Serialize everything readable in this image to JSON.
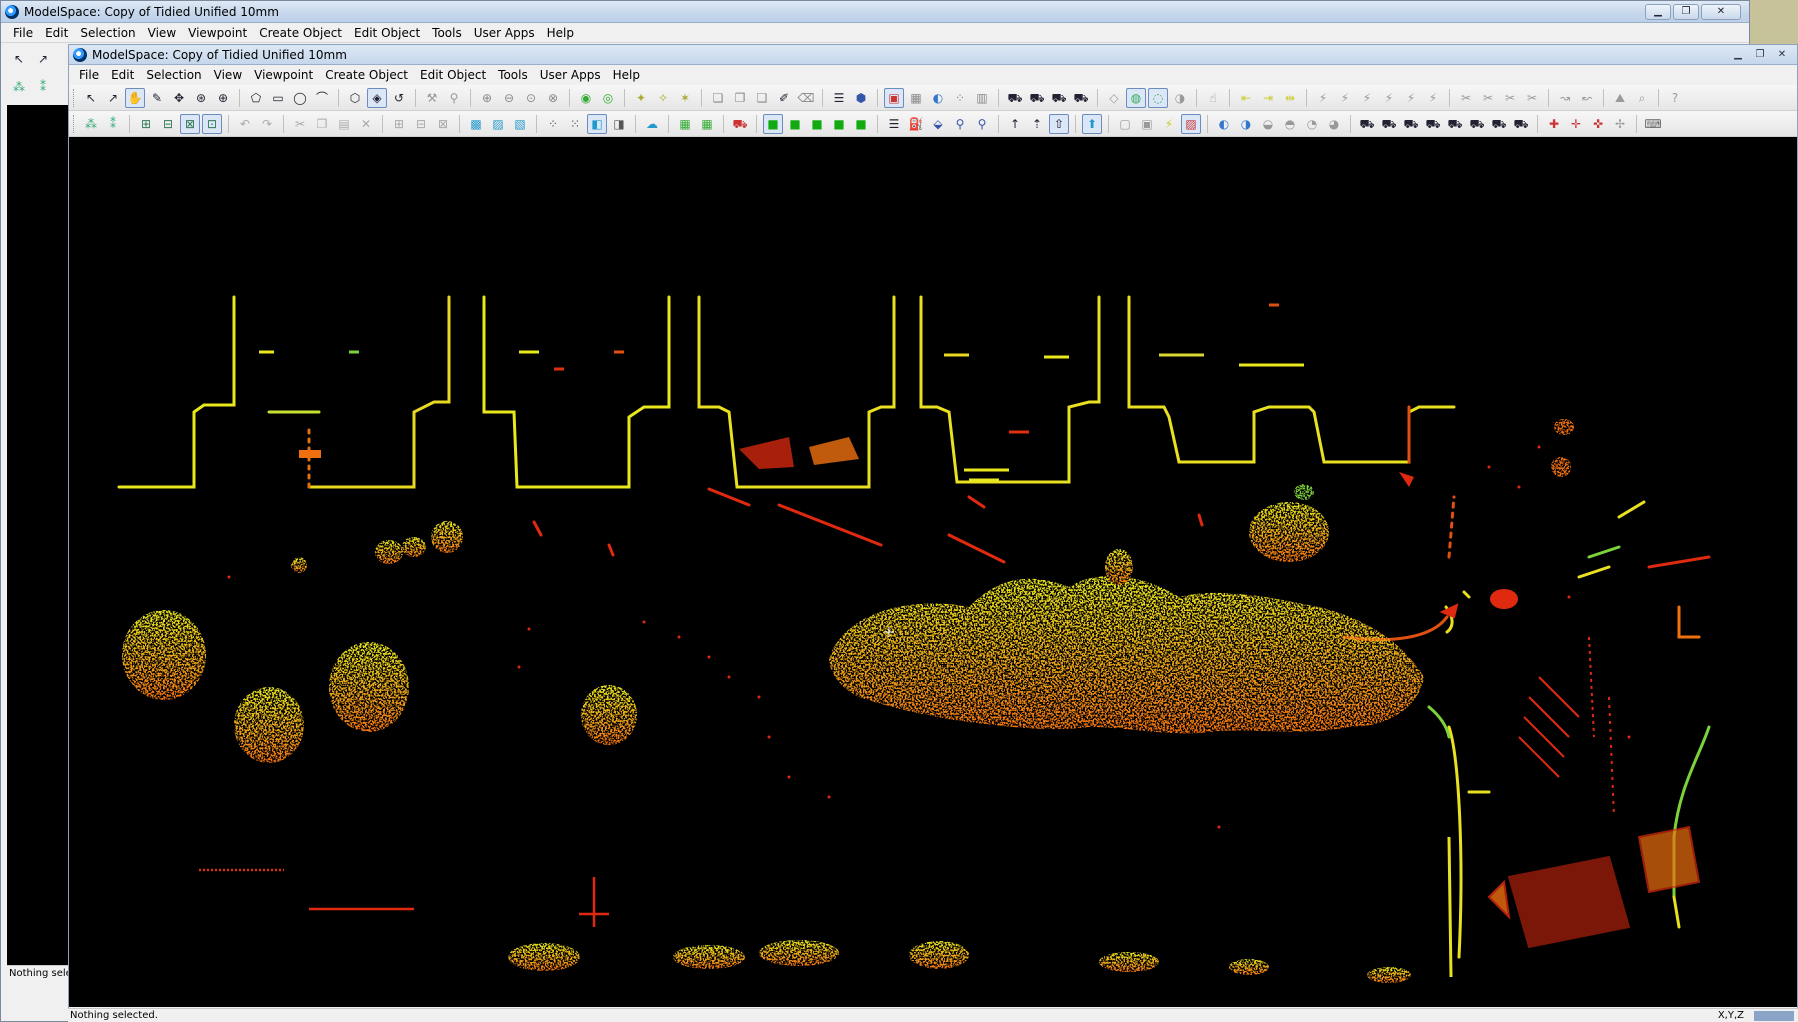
{
  "outer": {
    "title": "ModelSpace: Copy of Tidied Unified 10mm",
    "menu": [
      "File",
      "Edit",
      "Selection",
      "View",
      "Viewpoint",
      "Create Object",
      "Edit Object",
      "Tools",
      "User Apps",
      "Help"
    ],
    "status": "Nothing selec"
  },
  "inner": {
    "title": "ModelSpace: Copy of Tidied Unified 10mm",
    "menu": [
      "File",
      "Edit",
      "Selection",
      "View",
      "Viewpoint",
      "Create Object",
      "Edit Object",
      "Tools",
      "User Apps",
      "Help"
    ]
  },
  "statusbar": {
    "message": "Nothing selected.",
    "coords": "X,Y,Z"
  },
  "icons": {
    "window_minimize": "minimize-icon",
    "window_maximize": "maximize-icon",
    "window_close": "close-icon"
  },
  "colors": {
    "viewport_bg": "#000000",
    "scan_yellow": "#e6e020",
    "scan_orange": "#f08a10",
    "scan_red": "#e02a10",
    "scan_green": "#7cd23a"
  }
}
